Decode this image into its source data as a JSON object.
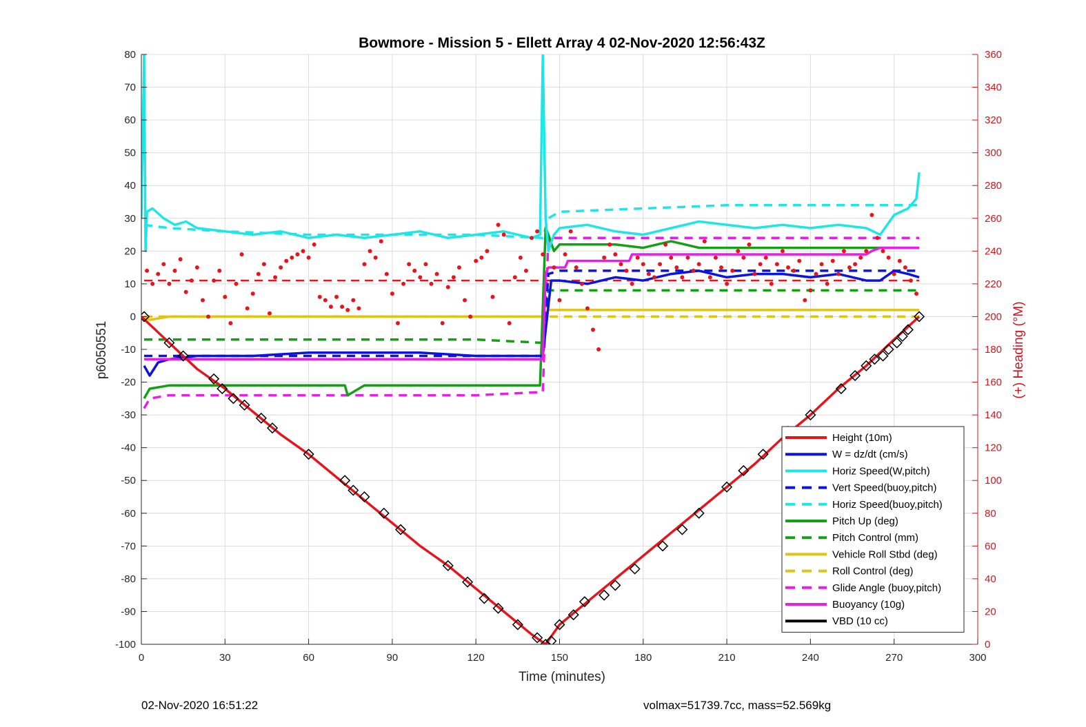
{
  "chart_data": {
    "type": "line",
    "title": "Bowmore - Mission 5 - Ellett Array 4 02-Nov-2020 12:56:43Z",
    "xlabel": "Time (minutes)",
    "ylabel": "p6050551",
    "y2label": "(+) Heading (°M)",
    "xlim": [
      0,
      300
    ],
    "ylim": [
      -100,
      80
    ],
    "y2lim": [
      0,
      360
    ],
    "xticks": [
      0,
      30,
      60,
      90,
      120,
      150,
      180,
      210,
      240,
      270,
      300
    ],
    "yticks": [
      80,
      70,
      60,
      50,
      40,
      30,
      20,
      10,
      0,
      -10,
      -20,
      -30,
      -40,
      -50,
      -60,
      -70,
      -80,
      -90,
      -100
    ],
    "y2ticks": [
      360,
      340,
      320,
      300,
      280,
      260,
      240,
      220,
      200,
      180,
      160,
      140,
      120,
      100,
      80,
      60,
      40,
      20,
      0
    ],
    "grid": true,
    "legend_position": "lower-right",
    "colors": {
      "height": "#e8141c",
      "w": "#0a14dc",
      "hspeed": "#1ee6e6",
      "pitch": "#14a014",
      "roll": "#e0c414",
      "glide": "#e61ee6",
      "buoyancy": "#e61ee6",
      "vbd": "#000000",
      "heading": "#e8141c",
      "right_axis": "#d2141c"
    },
    "series": [
      {
        "name": "Height (10m)",
        "style": "solid",
        "color": "#e8141c",
        "x": [
          0,
          10,
          20,
          30,
          40,
          50,
          60,
          70,
          80,
          90,
          100,
          110,
          120,
          130,
          140,
          145,
          150,
          160,
          170,
          180,
          190,
          200,
          210,
          220,
          230,
          240,
          250,
          260,
          270,
          279
        ],
        "values": [
          0,
          -8,
          -16,
          -22,
          -29,
          -36,
          -42,
          -49,
          -56,
          -63,
          -70,
          -76,
          -83,
          -90,
          -97,
          -100,
          -94,
          -87,
          -80,
          -73,
          -66,
          -59,
          -52,
          -45,
          -37,
          -30,
          -22,
          -15,
          -7,
          0
        ]
      },
      {
        "name": "W = dz/dt (cm/s)",
        "style": "solid",
        "color": "#0a14dc",
        "x": [
          1,
          3,
          6,
          10,
          20,
          40,
          60,
          80,
          100,
          120,
          140,
          144,
          147,
          150,
          160,
          170,
          180,
          190,
          200,
          210,
          220,
          230,
          240,
          250,
          260,
          265,
          270,
          275,
          279
        ],
        "values": [
          -15,
          -18,
          -14,
          -13,
          -12,
          -12,
          -11,
          -11,
          -11,
          -12,
          -12,
          -12,
          11,
          11,
          10,
          12,
          11,
          13,
          14,
          12,
          13,
          13,
          12,
          13,
          11,
          11,
          14,
          13,
          12
        ]
      },
      {
        "name": "Horiz Speed(W,pitch)",
        "style": "solid",
        "color": "#1ee6e6",
        "x": [
          0,
          1,
          1.5,
          2,
          4,
          8,
          12,
          16,
          20,
          30,
          40,
          50,
          60,
          70,
          80,
          90,
          100,
          110,
          120,
          130,
          140,
          143,
          144,
          145,
          146,
          148,
          150,
          160,
          170,
          180,
          190,
          200,
          210,
          220,
          230,
          240,
          250,
          260,
          265,
          270,
          275,
          278,
          279
        ],
        "values": [
          30,
          80,
          20,
          32,
          33,
          30,
          28,
          29,
          27,
          26,
          25,
          26,
          24,
          25,
          24,
          25,
          26,
          24,
          25,
          26,
          24,
          25,
          80,
          30,
          20,
          25,
          27,
          28,
          26,
          25,
          27,
          29,
          28,
          27,
          28,
          27,
          28,
          27,
          25,
          31,
          33,
          36,
          44
        ]
      },
      {
        "name": "Vert Speed(buoy,pitch)",
        "style": "dashed",
        "color": "#0a14dc",
        "x": [
          1,
          10,
          30,
          60,
          90,
          120,
          144,
          146,
          150,
          180,
          210,
          240,
          279
        ],
        "values": [
          -12,
          -12,
          -12,
          -12,
          -12,
          -12,
          -12,
          13,
          14,
          14,
          14,
          14,
          14
        ]
      },
      {
        "name": "Horiz Speed(buoy,pitch)",
        "style": "dashed",
        "color": "#1ee6e6",
        "x": [
          1,
          10,
          30,
          60,
          90,
          120,
          144,
          146,
          150,
          180,
          210,
          240,
          270,
          279
        ],
        "values": [
          28,
          27,
          26,
          25,
          25,
          25,
          24,
          30,
          32,
          33,
          34,
          34,
          34,
          34
        ]
      },
      {
        "name": "Pitch Up (deg)",
        "style": "solid",
        "color": "#14a014",
        "x": [
          1,
          3,
          10,
          30,
          60,
          73,
          74,
          80,
          100,
          120,
          143,
          145,
          146,
          148,
          150,
          160,
          170,
          180,
          190,
          200,
          210,
          220,
          230,
          240,
          250,
          260,
          270,
          279
        ],
        "values": [
          -25,
          -22,
          -21,
          -21,
          -21,
          -21,
          -24,
          -21,
          -21,
          -21,
          -21,
          27,
          25,
          20,
          22,
          22,
          22,
          21,
          23,
          21,
          21,
          21,
          21,
          21,
          21,
          21,
          21,
          21
        ]
      },
      {
        "name": "Pitch Control (mm)",
        "style": "dashed",
        "color": "#14a014",
        "x": [
          1,
          30,
          60,
          90,
          120,
          144,
          146,
          150,
          180,
          210,
          240,
          270,
          279
        ],
        "values": [
          -7,
          -7,
          -7,
          -7,
          -7,
          -8,
          8,
          8,
          8,
          8,
          8,
          8,
          8
        ]
      },
      {
        "name": "Vehicle Roll Stbd (deg)",
        "style": "solid",
        "color": "#e0c414",
        "x": [
          1,
          3,
          10,
          30,
          60,
          90,
          120,
          144,
          146,
          150,
          180,
          210,
          240,
          270,
          279
        ],
        "values": [
          0,
          -1,
          0,
          0,
          0,
          0,
          0,
          0,
          2,
          2,
          2,
          2,
          2,
          2,
          2
        ]
      },
      {
        "name": "Roll Control (deg)",
        "style": "dashed",
        "color": "#e0c414",
        "x": [
          1,
          30,
          60,
          90,
          120,
          144,
          146,
          150,
          180,
          210,
          240,
          270,
          279
        ],
        "values": [
          0,
          0,
          0,
          0,
          0,
          0,
          0,
          0,
          0,
          0,
          0,
          0,
          0
        ]
      },
      {
        "name": "Glide Angle (buoy,pitch)",
        "style": "dashed",
        "color": "#e61ee6",
        "x": [
          1,
          3,
          10,
          30,
          60,
          90,
          120,
          144,
          146,
          150,
          180,
          210,
          240,
          270,
          279
        ],
        "values": [
          -28,
          -25,
          -24,
          -24,
          -24,
          -24,
          -24,
          -23,
          24,
          24,
          24,
          24,
          24,
          24,
          24
        ]
      },
      {
        "name": "Buoyancy (10g)",
        "style": "solid",
        "color": "#e61ee6",
        "x": [
          1,
          144,
          145,
          146,
          150,
          152,
          153,
          170,
          175,
          176,
          200,
          230,
          240,
          260,
          262,
          265,
          279
        ],
        "values": [
          -13,
          -13,
          13,
          15,
          15,
          15,
          17,
          17,
          17,
          19,
          19,
          19,
          19,
          19,
          20,
          21,
          21
        ]
      },
      {
        "name": "VBD (10 cc)",
        "style": "solid",
        "color": "#000000",
        "x": [
          0,
          0.8,
          1,
          5,
          20,
          60,
          100,
          144,
          145,
          147,
          150,
          151,
          155,
          172,
          175,
          185,
          186,
          200,
          230,
          260,
          265,
          279
        ],
        "values": [
          0,
          0,
          -12,
          -12,
          -12,
          -12,
          -12,
          -12,
          11,
          12,
          12,
          14,
          17,
          17,
          17,
          18,
          19,
          19,
          19,
          19,
          21,
          21
        ]
      }
    ],
    "heading": {
      "name": "(+) Heading (°M)",
      "axis": "right",
      "reference": 222,
      "reference_range": [
        1,
        279
      ],
      "x": [
        2,
        4,
        6,
        8,
        10,
        12,
        14,
        16,
        18,
        20,
        22,
        24,
        26,
        28,
        30,
        32,
        34,
        36,
        38,
        40,
        42,
        44,
        46,
        48,
        50,
        52,
        54,
        56,
        58,
        60,
        62,
        64,
        66,
        68,
        70,
        72,
        74,
        76,
        78,
        80,
        82,
        84,
        86,
        88,
        90,
        92,
        94,
        96,
        98,
        100,
        102,
        104,
        106,
        108,
        110,
        112,
        114,
        116,
        118,
        120,
        122,
        124,
        126,
        128,
        130,
        132,
        134,
        136,
        138,
        140,
        142,
        144,
        148,
        150,
        152,
        154,
        156,
        158,
        160,
        162,
        164,
        166,
        168,
        170,
        172,
        174,
        176,
        178,
        180,
        182,
        184,
        186,
        188,
        190,
        192,
        194,
        196,
        198,
        200,
        202,
        204,
        206,
        208,
        210,
        212,
        214,
        216,
        218,
        220,
        222,
        224,
        226,
        228,
        230,
        232,
        234,
        236,
        238,
        240,
        242,
        244,
        246,
        248,
        250,
        252,
        254,
        256,
        258,
        260,
        262,
        264,
        266,
        268,
        270,
        272,
        274,
        276,
        278
      ],
      "values": [
        228,
        220,
        226,
        232,
        220,
        228,
        235,
        215,
        222,
        230,
        210,
        200,
        222,
        228,
        212,
        196,
        220,
        238,
        205,
        214,
        226,
        232,
        202,
        224,
        230,
        234,
        236,
        238,
        240,
        236,
        244,
        212,
        210,
        206,
        212,
        206,
        204,
        210,
        205,
        232,
        240,
        236,
        246,
        226,
        214,
        196,
        220,
        232,
        228,
        224,
        232,
        220,
        226,
        196,
        218,
        224,
        230,
        210,
        200,
        234,
        236,
        240,
        212,
        256,
        250,
        196,
        224,
        236,
        228,
        248,
        252,
        238,
        230,
        210,
        238,
        252,
        230,
        220,
        205,
        192,
        180,
        236,
        244,
        238,
        232,
        228,
        220,
        236,
        232,
        226,
        224,
        232,
        244,
        236,
        230,
        224,
        236,
        228,
        232,
        246,
        224,
        236,
        230,
        220,
        228,
        240,
        236,
        244,
        226,
        232,
        236,
        220,
        232,
        240,
        230,
        228,
        234,
        210,
        216,
        226,
        232,
        220,
        234,
        226,
        240,
        230,
        232,
        236,
        240,
        262,
        248,
        240,
        236,
        226,
        234,
        230,
        222,
        214
      ]
    },
    "markers": {
      "name": "Height samples",
      "x": [
        1,
        10,
        15,
        26,
        29,
        33,
        37,
        43,
        47,
        60,
        73,
        76,
        80,
        87,
        93,
        110,
        117,
        123,
        128,
        135,
        142,
        145,
        147,
        150,
        155,
        159,
        166,
        170,
        177,
        187,
        194,
        200,
        210,
        216,
        223,
        232,
        240,
        251,
        256,
        260,
        263,
        266,
        268,
        271,
        273,
        275,
        279
      ],
      "values": [
        0,
        -8,
        -12,
        -19,
        -22,
        -25,
        -27,
        -31,
        -34,
        -42,
        -50,
        -53,
        -55,
        -60,
        -65,
        -76,
        -81,
        -86,
        -89,
        -94,
        -98,
        -100,
        -99,
        -94,
        -91,
        -87,
        -85,
        -82,
        -77,
        -70,
        -65,
        -60,
        -52,
        -47,
        -42,
        -35,
        -30,
        -22,
        -18,
        -15,
        -13,
        -12,
        -10,
        -8,
        -6,
        -4,
        0
      ]
    }
  },
  "footer": {
    "timestamp": "02-Nov-2020 16:51:22",
    "volmax_mass": "volmax=51739.7cc, mass=52.569kg"
  }
}
